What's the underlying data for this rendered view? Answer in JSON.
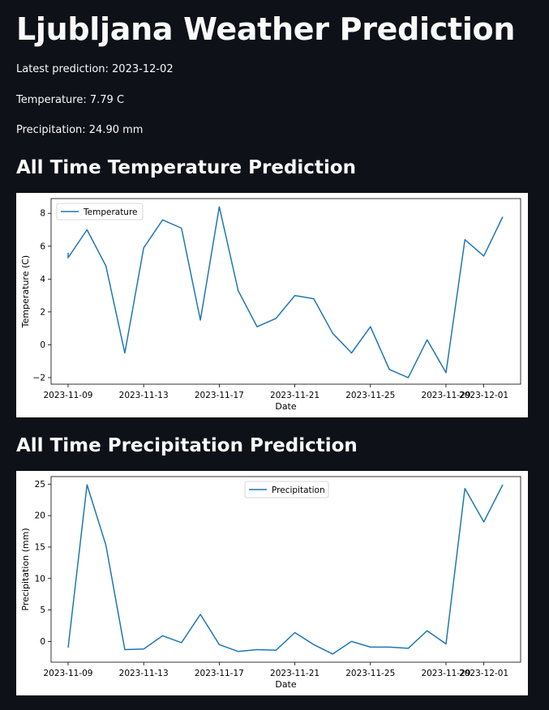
{
  "page": {
    "title": "Ljubljana Weather Prediction",
    "latest_prediction": "Latest prediction: 2023-12-02",
    "temperature": "Temperature: 7.79 C",
    "precipitation": "Precipitation: 24.90 mm",
    "temp_section_title": "All Time Temperature Prediction",
    "precip_section_title": "All Time Precipitation Prediction"
  },
  "colors": {
    "background": "#0e1117",
    "text": "#fafafa",
    "line": "#1f77b4"
  },
  "chart_data": [
    {
      "type": "line",
      "xlabel": "Date",
      "ylabel": "Temperature (C)",
      "legend": "top-left",
      "x_ticks": [
        "2023-11-09",
        "2023-11-13",
        "2023-11-17",
        "2023-11-21",
        "2023-11-25",
        "2023-11-29",
        "2023-12-01"
      ],
      "y_ticks": [
        -2,
        0,
        2,
        4,
        6,
        8
      ],
      "ylim": [
        -2.4,
        8.9
      ],
      "xlim": [
        "2023-11-08",
        "2023-12-03"
      ],
      "series": [
        {
          "name": "Temperature",
          "x": [
            "2023-11-09",
            "2023-11-09",
            "2023-11-10",
            "2023-11-11",
            "2023-11-12",
            "2023-11-13",
            "2023-11-14",
            "2023-11-15",
            "2023-11-16",
            "2023-11-17",
            "2023-11-18",
            "2023-11-19",
            "2023-11-20",
            "2023-11-21",
            "2023-11-22",
            "2023-11-23",
            "2023-11-24",
            "2023-11-25",
            "2023-11-26",
            "2023-11-27",
            "2023-11-28",
            "2023-11-29",
            "2023-11-30",
            "2023-12-01",
            "2023-12-02"
          ],
          "values": [
            5.6,
            5.3,
            7.0,
            4.8,
            -0.5,
            5.9,
            7.6,
            7.1,
            1.5,
            8.4,
            3.3,
            1.1,
            1.6,
            3.0,
            2.8,
            0.7,
            -0.5,
            1.1,
            -1.5,
            -2.0,
            0.3,
            -1.7,
            6.4,
            5.4,
            7.79
          ]
        }
      ]
    },
    {
      "type": "line",
      "xlabel": "Date",
      "ylabel": "Precipitation (mm)",
      "legend": "top-center",
      "x_ticks": [
        "2023-11-09",
        "2023-11-13",
        "2023-11-17",
        "2023-11-21",
        "2023-11-25",
        "2023-11-29",
        "2023-12-01"
      ],
      "y_ticks": [
        0,
        5,
        10,
        15,
        20,
        25
      ],
      "ylim": [
        -3.3,
        26.2
      ],
      "xlim": [
        "2023-11-08",
        "2023-12-03"
      ],
      "series": [
        {
          "name": "Precipitation",
          "x": [
            "2023-11-09",
            "2023-11-10",
            "2023-11-11",
            "2023-11-12",
            "2023-11-13",
            "2023-11-14",
            "2023-11-15",
            "2023-11-16",
            "2023-11-17",
            "2023-11-18",
            "2023-11-19",
            "2023-11-20",
            "2023-11-21",
            "2023-11-22",
            "2023-11-23",
            "2023-11-24",
            "2023-11-25",
            "2023-11-26",
            "2023-11-27",
            "2023-11-28",
            "2023-11-29",
            "2023-11-30",
            "2023-12-01",
            "2023-12-02"
          ],
          "values": [
            -1.0,
            24.9,
            15.3,
            -1.3,
            -1.2,
            0.9,
            -0.2,
            4.3,
            -0.5,
            -1.6,
            -1.3,
            -1.4,
            1.4,
            -0.5,
            -2.0,
            0.0,
            -0.9,
            -0.9,
            -1.1,
            1.7,
            -0.4,
            24.3,
            19.0,
            24.9
          ]
        }
      ]
    }
  ]
}
